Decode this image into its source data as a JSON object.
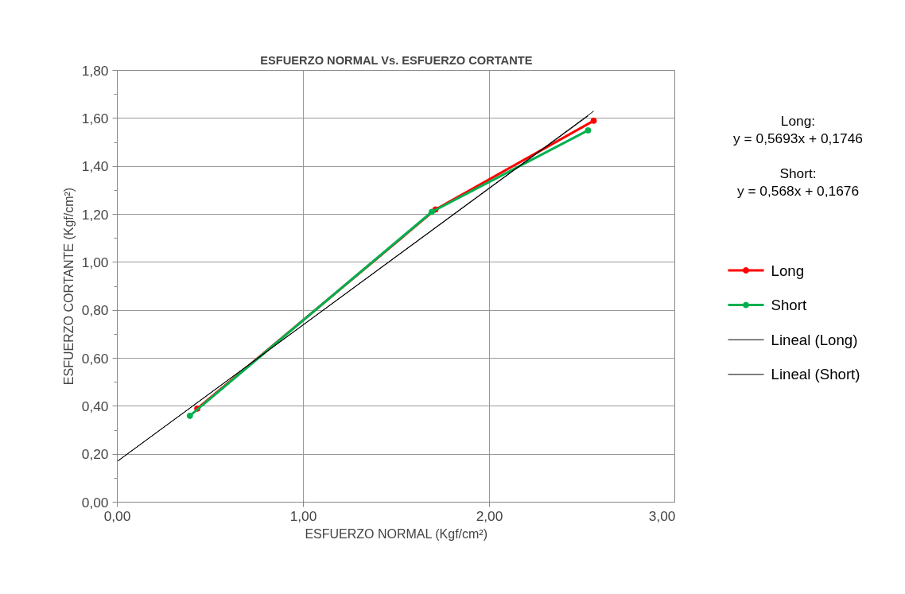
{
  "chart_data": {
    "type": "line",
    "title": "ESFUERZO NORMAL Vs. ESFUERZO CORTANTE",
    "xlabel": "ESFUERZO NORMAL (Kgf/cm²)",
    "ylabel": "ESFUERZO CORTANTE (Kgf/cm²)",
    "xlim": [
      0,
      3
    ],
    "ylim": [
      0,
      1.8
    ],
    "xticks": [
      {
        "value": 0,
        "label": "0,00"
      },
      {
        "value": 1,
        "label": "1,00"
      },
      {
        "value": 2,
        "label": "2,00"
      },
      {
        "value": 3,
        "label": "3,00"
      }
    ],
    "yticks": [
      {
        "value": 0,
        "label": "0,00"
      },
      {
        "value": 0.2,
        "label": "0,20"
      },
      {
        "value": 0.4,
        "label": "0,40"
      },
      {
        "value": 0.6,
        "label": "0,60"
      },
      {
        "value": 0.8,
        "label": "0,80"
      },
      {
        "value": 1.0,
        "label": "1,00"
      },
      {
        "value": 1.2,
        "label": "1,20"
      },
      {
        "value": 1.4,
        "label": "1,40"
      },
      {
        "value": 1.6,
        "label": "1,60"
      },
      {
        "value": 1.8,
        "label": "1,80"
      }
    ],
    "grid": true,
    "legend": "right",
    "marker": "circle",
    "line_style": "solid",
    "series": [
      {
        "name": "Long",
        "color": "#ff0000",
        "x": [
          0.43,
          1.71,
          2.56
        ],
        "values": [
          0.39,
          1.22,
          1.59
        ]
      },
      {
        "name": "Short",
        "color": "#00b050",
        "x": [
          0.39,
          1.69,
          2.53
        ],
        "values": [
          0.36,
          1.21,
          1.55
        ]
      },
      {
        "name": "Lineal (Long)",
        "color": "#000000",
        "marker": "none",
        "x": [
          0,
          2.56
        ],
        "values": [
          0.17,
          1.63
        ]
      },
      {
        "name": "Lineal (Short)",
        "color": "#000000",
        "marker": "none",
        "x": [
          0,
          2.53
        ],
        "values": [
          0.17,
          1.61
        ]
      }
    ],
    "annotations": [
      "Long:",
      "y = 0,5693x + 0,1746",
      "Short:",
      "y = 0,568x + 0,1676"
    ]
  }
}
